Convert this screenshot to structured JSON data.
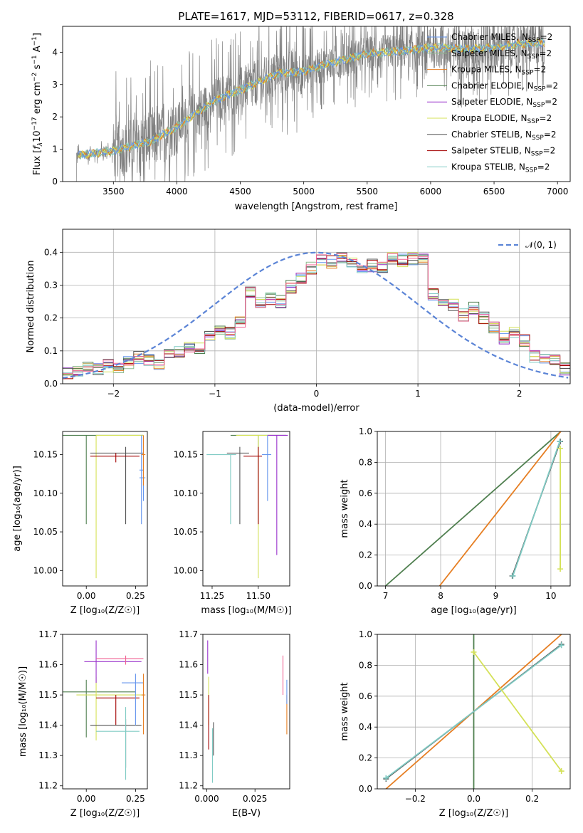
{
  "figure_title": "PLATE=1617, MJD=53112, FIBERID=0617, z=0.328",
  "colors": {
    "Chabrier MILES": "#6495ed",
    "Salpeter MILES": "#8fbc8f",
    "Kroupa MILES": "#e67e22",
    "Chabrier ELODIE": "#4f7f4f",
    "Salpeter ELODIE": "#9932cc",
    "Kroupa ELODIE": "#d4e157",
    "Chabrier STELIB": "#555555",
    "Salpeter STELIB": "#a30000",
    "Kroupa STELIB": "#80cbc4",
    "data_gray": "#808080",
    "normal_curve": "#5b84d6",
    "pink": "#f06292"
  },
  "chart_data": [
    {
      "id": "spectrum",
      "type": "line",
      "title": "PLATE=1617, MJD=53112, FIBERID=0617, z=0.328",
      "xlabel": "wavelength [Angstrom, rest frame]",
      "ylabel_parts": [
        "Flux [",
        "f",
        "λ",
        "10",
        "−17",
        " erg cm",
        "−2",
        " s",
        "−1",
        " A",
        "−1",
        "]"
      ],
      "xlim": [
        3100,
        7100
      ],
      "ylim": [
        0,
        4.8
      ],
      "xticks": [
        3500,
        4000,
        4500,
        5000,
        5500,
        6000,
        6500,
        7000
      ],
      "yticks": [
        0,
        1,
        2,
        3,
        4
      ],
      "grid": false,
      "legend_position": "top-right",
      "continuum": [
        [
          3200,
          0.8
        ],
        [
          3500,
          0.95
        ],
        [
          3800,
          1.25
        ],
        [
          4000,
          1.7
        ],
        [
          4300,
          2.5
        ],
        [
          4600,
          3.0
        ],
        [
          4800,
          3.35
        ],
        [
          5000,
          3.4
        ],
        [
          5200,
          3.65
        ],
        [
          5500,
          3.95
        ],
        [
          5800,
          4.05
        ],
        [
          6000,
          4.15
        ],
        [
          6300,
          4.1
        ],
        [
          6500,
          4.15
        ],
        [
          6700,
          4.25
        ],
        [
          6900,
          4.3
        ]
      ],
      "data_noise_ranges": [
        [
          3200,
          3500,
          0.25
        ],
        [
          3500,
          4000,
          1.6
        ],
        [
          4000,
          5000,
          1.3
        ],
        [
          5000,
          6000,
          1.0
        ],
        [
          6000,
          6900,
          1.2
        ]
      ],
      "legend": [
        {
          "name_base": "Chabrier MILES",
          "sub": "SSP",
          "suffix": "=2"
        },
        {
          "name_base": "Salpeter MILES",
          "sub": "SSP",
          "suffix": "=2"
        },
        {
          "name_base": "Kroupa MILES",
          "sub": "SSP",
          "suffix": "=2"
        },
        {
          "name_base": "Chabrier ELODIE",
          "sub": "SSP",
          "suffix": "=2"
        },
        {
          "name_base": "Salpeter ELODIE",
          "sub": "SSP",
          "suffix": "=2"
        },
        {
          "name_base": "Kroupa ELODIE",
          "sub": "SSP",
          "suffix": "=2"
        },
        {
          "name_base": "Chabrier STELIB",
          "sub": "SSP",
          "suffix": "=2"
        },
        {
          "name_base": "Salpeter STELIB",
          "sub": "SSP",
          "suffix": "=2"
        },
        {
          "name_base": "Kroupa STELIB",
          "sub": "SSP",
          "suffix": "=2"
        }
      ],
      "legend_prefix": "N"
    },
    {
      "id": "residuals",
      "type": "histogram",
      "xlabel": "(data-model)/error",
      "ylabel": "Normed distribution",
      "xlim": [
        -2.5,
        2.5
      ],
      "ylim": [
        0,
        0.47
      ],
      "xticks": [
        -2,
        -1,
        0,
        1,
        2
      ],
      "yticks": [
        0.0,
        0.1,
        0.2,
        0.3,
        0.4
      ],
      "grid": true,
      "legend_position": "top-right",
      "legend_label": "𝒩(0, 1)",
      "bin_edges_start": -2.5,
      "bin_width": 0.1,
      "base_heights": [
        0.03,
        0.04,
        0.05,
        0.045,
        0.055,
        0.05,
        0.065,
        0.08,
        0.07,
        0.06,
        0.09,
        0.095,
        0.11,
        0.11,
        0.145,
        0.17,
        0.155,
        0.19,
        0.28,
        0.25,
        0.26,
        0.25,
        0.295,
        0.325,
        0.35,
        0.38,
        0.37,
        0.385,
        0.37,
        0.355,
        0.36,
        0.35,
        0.38,
        0.375,
        0.38,
        0.375,
        0.27,
        0.255,
        0.24,
        0.21,
        0.23,
        0.2,
        0.17,
        0.14,
        0.16,
        0.13,
        0.085,
        0.075,
        0.07,
        0.045
      ]
    },
    {
      "id": "age_vs_Z",
      "type": "errorbar",
      "xlabel": "Z [log₁₀(Z/Z☉)]",
      "ylabel": "age  [log₁₀(age/yr)]",
      "xlim": [
        -0.12,
        0.31
      ],
      "ylim": [
        9.98,
        10.18
      ],
      "xticks": [
        0.0,
        0.25
      ],
      "yticks": [
        10.0,
        10.05,
        10.1,
        10.15
      ],
      "grid": false,
      "points": [
        {
          "x": 0.0,
          "xlo": -0.12,
          "xhi": 0.29,
          "y": 10.175,
          "ylo": 10.06,
          "yhi": 10.175,
          "c": "Chabrier ELODIE"
        },
        {
          "x": 0.05,
          "xlo": 0.05,
          "xhi": 0.29,
          "y": 10.175,
          "ylo": 9.99,
          "yhi": 10.175,
          "c": "Kroupa ELODIE"
        },
        {
          "x": 0.2,
          "xlo": 0.02,
          "xhi": 0.29,
          "y": 10.152,
          "ylo": 10.06,
          "yhi": 10.16,
          "c": "Chabrier STELIB"
        },
        {
          "x": 0.15,
          "xlo": 0.02,
          "xhi": 0.27,
          "y": 10.148,
          "ylo": 10.14,
          "yhi": 10.152,
          "c": "Salpeter STELIB"
        },
        {
          "x": 0.28,
          "xlo": 0.27,
          "xhi": 0.29,
          "y": 10.13,
          "ylo": 10.06,
          "yhi": 10.175,
          "c": "Chabrier MILES"
        },
        {
          "x": 0.29,
          "xlo": 0.27,
          "xhi": 0.3,
          "y": 10.12,
          "ylo": 10.09,
          "yhi": 10.175,
          "c": "Chabrier MILES"
        },
        {
          "x": 0.29,
          "xlo": 0.28,
          "xhi": 0.3,
          "y": 10.15,
          "ylo": 10.11,
          "yhi": 10.175,
          "c": "Kroupa MILES"
        }
      ]
    },
    {
      "id": "age_vs_mass",
      "type": "errorbar",
      "xlabel": "mass [log₁₀(M/M☉)]",
      "ylabel": "",
      "xlim": [
        11.2,
        11.67
      ],
      "ylim": [
        9.98,
        10.18
      ],
      "xticks": [
        11.25,
        11.5
      ],
      "yticks": [
        10.0,
        10.05,
        10.1,
        10.15
      ],
      "grid": false,
      "points": [
        {
          "x": 11.5,
          "xlo": 11.35,
          "xhi": 11.65,
          "y": 10.175,
          "ylo": 10.06,
          "yhi": 10.175,
          "c": "Chabrier ELODIE"
        },
        {
          "x": 11.5,
          "xlo": 11.38,
          "xhi": 11.58,
          "y": 10.175,
          "ylo": 9.99,
          "yhi": 10.175,
          "c": "Kroupa ELODIE"
        },
        {
          "x": 11.6,
          "xlo": 11.55,
          "xhi": 11.66,
          "y": 10.175,
          "ylo": 10.02,
          "yhi": 10.175,
          "c": "Salpeter ELODIE"
        },
        {
          "x": 11.4,
          "xlo": 11.33,
          "xhi": 11.45,
          "y": 10.152,
          "ylo": 10.06,
          "yhi": 10.16,
          "c": "Chabrier STELIB"
        },
        {
          "x": 11.5,
          "xlo": 11.42,
          "xhi": 11.52,
          "y": 10.148,
          "ylo": 10.06,
          "yhi": 10.16,
          "c": "Salpeter STELIB"
        },
        {
          "x": 11.35,
          "xlo": 11.22,
          "xhi": 11.38,
          "y": 10.15,
          "ylo": 10.06,
          "yhi": 10.15,
          "c": "Kroupa STELIB"
        },
        {
          "x": 11.55,
          "xlo": 11.52,
          "xhi": 11.57,
          "y": 10.15,
          "ylo": 10.09,
          "yhi": 10.175,
          "c": "Chabrier MILES"
        }
      ]
    },
    {
      "id": "mass_weight_vs_age",
      "type": "line",
      "xlabel": "age  [log₁₀(age/yr)]",
      "ylabel": "mass weight",
      "xlim": [
        6.85,
        10.35
      ],
      "ylim": [
        0,
        1.0
      ],
      "xticks": [
        7,
        8,
        9,
        10
      ],
      "yticks": [
        0.0,
        0.2,
        0.4,
        0.6,
        0.8,
        1.0
      ],
      "grid": true,
      "series": [
        {
          "c": "Chabrier ELODIE",
          "x": [
            7.0,
            10.18
          ],
          "y": [
            0.0,
            1.0
          ],
          "marker": false
        },
        {
          "c": "Kroupa MILES",
          "x": [
            7.98,
            10.18
          ],
          "y": [
            0.0,
            1.0
          ],
          "marker": false
        },
        {
          "c": "Chabrier STELIB",
          "x": [
            9.3,
            10.17
          ],
          "y": [
            0.065,
            0.935
          ],
          "marker": true
        },
        {
          "c": "Kroupa STELIB",
          "x": [
            9.31,
            10.16
          ],
          "y": [
            0.065,
            0.935
          ],
          "marker": true
        },
        {
          "c": "Kroupa ELODIE",
          "x": [
            10.17,
            10.17
          ],
          "y": [
            0.11,
            0.89
          ],
          "marker": true
        }
      ]
    },
    {
      "id": "mass_vs_Z",
      "type": "errorbar",
      "xlabel": "Z [log₁₀(Z/Z☉)]",
      "ylabel": "mass [log₁₀(M/M☉)]",
      "xlim": [
        -0.12,
        0.31
      ],
      "ylim": [
        11.19,
        11.7
      ],
      "xticks": [
        0.0,
        0.25
      ],
      "yticks": [
        11.2,
        11.3,
        11.4,
        11.5,
        11.6,
        11.7
      ],
      "grid": false,
      "points": [
        {
          "x": 0.0,
          "xlo": -0.12,
          "xhi": 0.25,
          "y": 11.51,
          "ylo": 11.36,
          "yhi": 11.55,
          "c": "Chabrier ELODIE"
        },
        {
          "x": 0.05,
          "xlo": -0.05,
          "xhi": 0.29,
          "y": 11.5,
          "ylo": 11.35,
          "yhi": 11.56,
          "c": "Kroupa ELODIE"
        },
        {
          "x": 0.05,
          "xlo": -0.01,
          "xhi": 0.28,
          "y": 11.61,
          "ylo": 11.54,
          "yhi": 11.68,
          "c": "Salpeter ELODIE"
        },
        {
          "x": 0.2,
          "xlo": 0.05,
          "xhi": 0.29,
          "y": 11.62,
          "ylo": 11.6,
          "yhi": 11.63,
          "c": "pink"
        },
        {
          "x": 0.15,
          "xlo": 0.05,
          "xhi": 0.27,
          "y": 11.49,
          "ylo": 11.4,
          "yhi": 11.5,
          "c": "Salpeter STELIB"
        },
        {
          "x": 0.2,
          "xlo": 0.02,
          "xhi": 0.28,
          "y": 11.4,
          "ylo": 11.26,
          "yhi": 11.42,
          "c": "Chabrier STELIB"
        },
        {
          "x": 0.2,
          "xlo": 0.05,
          "xhi": 0.27,
          "y": 11.38,
          "ylo": 11.22,
          "yhi": 11.46,
          "c": "Kroupa STELIB"
        },
        {
          "x": 0.25,
          "xlo": 0.18,
          "xhi": 0.29,
          "y": 11.54,
          "ylo": 11.4,
          "yhi": 11.57,
          "c": "Chabrier MILES"
        },
        {
          "x": 0.29,
          "xlo": 0.28,
          "xhi": 0.3,
          "y": 11.5,
          "ylo": 11.37,
          "yhi": 11.57,
          "c": "Kroupa MILES"
        }
      ]
    },
    {
      "id": "mass_vs_ebv",
      "type": "errorbar",
      "xlabel": "E(B-V)",
      "ylabel": "",
      "xlim": [
        -0.002,
        0.043
      ],
      "ylim": [
        11.19,
        11.7
      ],
      "xticks": [
        0.0,
        0.025
      ],
      "yticks": [
        11.2,
        11.3,
        11.4,
        11.5,
        11.6,
        11.7
      ],
      "grid": false,
      "points": [
        {
          "x": 0.0005,
          "xlo": 0.0005,
          "xhi": 0.0005,
          "y": 11.61,
          "ylo": 11.57,
          "yhi": 11.68,
          "c": "Salpeter ELODIE"
        },
        {
          "x": 0.001,
          "xlo": 0.001,
          "xhi": 0.001,
          "y": 11.5,
          "ylo": 11.4,
          "yhi": 11.56,
          "c": "Kroupa ELODIE"
        },
        {
          "x": 0.001,
          "xlo": 0.001,
          "xhi": 0.001,
          "y": 11.45,
          "ylo": 11.32,
          "yhi": 11.5,
          "c": "Salpeter STELIB"
        },
        {
          "x": 0.003,
          "xlo": 0.003,
          "xhi": 0.003,
          "y": 11.35,
          "ylo": 11.21,
          "yhi": 11.39,
          "c": "Kroupa STELIB"
        },
        {
          "x": 0.0035,
          "xlo": 0.0035,
          "xhi": 0.0035,
          "y": 11.38,
          "ylo": 11.3,
          "yhi": 11.41,
          "c": "Chabrier STELIB"
        },
        {
          "x": 0.0395,
          "xlo": 0.0395,
          "xhi": 0.0395,
          "y": 11.57,
          "ylo": 11.5,
          "yhi": 11.63,
          "c": "pink"
        },
        {
          "x": 0.0415,
          "xlo": 0.0415,
          "xhi": 0.0415,
          "y": 11.45,
          "ylo": 11.37,
          "yhi": 11.5,
          "c": "Kroupa MILES"
        },
        {
          "x": 0.0415,
          "xlo": 0.0415,
          "xhi": 0.0415,
          "y": 11.52,
          "ylo": 11.47,
          "yhi": 11.55,
          "c": "Chabrier MILES"
        }
      ]
    },
    {
      "id": "mass_weight_vs_Z",
      "type": "line",
      "xlabel": "Z [log₁₀(Z/Z☉)]",
      "ylabel": "mass weight",
      "xlim": [
        -0.33,
        0.33
      ],
      "ylim": [
        0,
        1.0
      ],
      "xticks": [
        -0.2,
        0.0,
        0.2
      ],
      "yticks": [
        0.0,
        0.2,
        0.4,
        0.6,
        0.8,
        1.0
      ],
      "grid": true,
      "series": [
        {
          "c": "Chabrier ELODIE",
          "x": [
            0.0,
            0.0
          ],
          "y": [
            0.0,
            1.0
          ],
          "marker": false
        },
        {
          "c": "Kroupa MILES",
          "x": [
            -0.3,
            0.3
          ],
          "y": [
            0.0,
            1.0
          ],
          "marker": false
        },
        {
          "c": "Chabrier STELIB",
          "x": [
            -0.3,
            0.3
          ],
          "y": [
            0.065,
            0.935
          ],
          "marker": true
        },
        {
          "c": "Kroupa STELIB",
          "x": [
            -0.3,
            0.3
          ],
          "y": [
            0.07,
            0.93
          ],
          "marker": true
        },
        {
          "c": "Kroupa ELODIE",
          "x": [
            0.0,
            0.3
          ],
          "y": [
            0.885,
            0.115
          ],
          "marker": true
        }
      ]
    }
  ]
}
